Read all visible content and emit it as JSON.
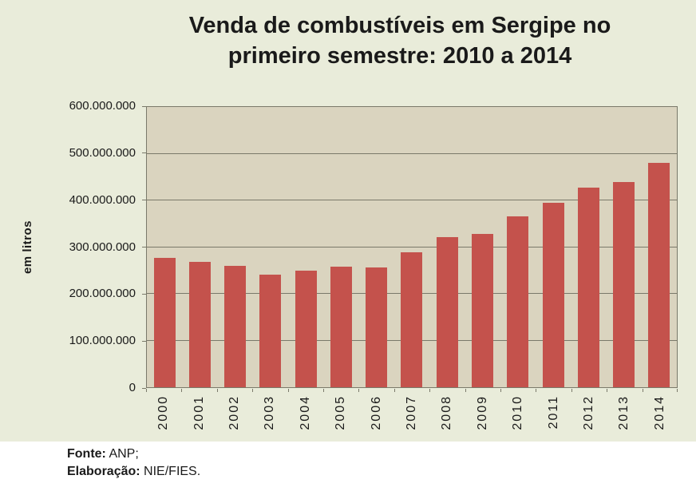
{
  "title": {
    "line1": "Venda de combustíveis em Sergipe no",
    "line2": "primeiro semestre: 2010 a 2014"
  },
  "chart_data": {
    "type": "bar",
    "title": "Venda de combustíveis em Sergipe no primeiro semestre: 2010 a 2014",
    "categories": [
      "2000",
      "2001",
      "2002",
      "2003",
      "2004",
      "2005",
      "2006",
      "2007",
      "2008",
      "2009",
      "2010",
      "2011",
      "2012",
      "2013",
      "2014"
    ],
    "values": [
      277000000,
      268000000,
      260000000,
      241000000,
      250000000,
      259000000,
      256000000,
      289000000,
      321000000,
      328000000,
      365000000,
      395000000,
      428000000,
      440000000,
      481000000
    ],
    "xlabel": "",
    "ylabel": "em litros",
    "ylim": [
      0,
      600000000
    ],
    "ytick_step": 100000000,
    "ytick_labels": [
      "0",
      "100.000.000",
      "200.000.000",
      "300.000.000",
      "400.000.000",
      "500.000.000",
      "600.000.000"
    ],
    "grid": true,
    "legend": "none",
    "colors": {
      "bar": "#c4524c",
      "plot_bg": "#dad4bf",
      "canvas_bg": "#e9ecda",
      "grid": "#7a796a",
      "text": "#1a1a1a"
    }
  },
  "footer": {
    "source_label": "Fonte:",
    "source_value": "ANP;",
    "elaboration_label": "Elaboração:",
    "elaboration_value": "NIE/FIES."
  }
}
